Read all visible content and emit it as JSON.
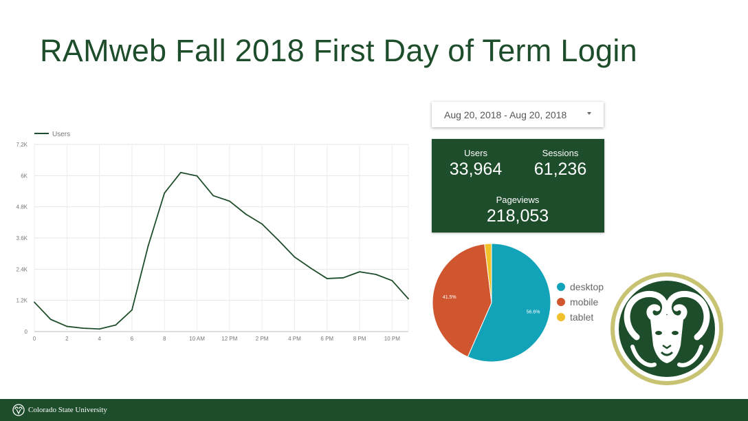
{
  "slide": {
    "title": "RAMweb Fall 2018 First Day of Term Login",
    "footer_text": "Colorado State University"
  },
  "date_range": {
    "label": "Aug 20, 2018 - Aug 20, 2018"
  },
  "kpis": {
    "users": {
      "label": "Users",
      "value": "33,964"
    },
    "sessions": {
      "label": "Sessions",
      "value": "61,236"
    },
    "pageviews": {
      "label": "Pageviews",
      "value": "218,053"
    }
  },
  "colors": {
    "brand_green": "#1e4d2b",
    "line": "#1e4d2b",
    "desktop": "#12a3b9",
    "mobile": "#d0562f",
    "tablet": "#f2c02b",
    "logo_gold": "#c8c372"
  },
  "icons": {
    "dropdown": "caret-down-icon",
    "logo": "csu-ram-logo",
    "footer": "csu-ram-mark"
  },
  "chart_data": [
    {
      "type": "line",
      "legend": {
        "entries": [
          "Users"
        ],
        "position": "top-left"
      },
      "x_tick_labels": [
        "0",
        "2",
        "4",
        "6",
        "8",
        "10 AM",
        "12 PM",
        "2 PM",
        "4 PM",
        "6 PM",
        "8 PM",
        "10 PM"
      ],
      "y_tick_labels": [
        "0",
        "1.2K",
        "2.4K",
        "3.6K",
        "4.8K",
        "6K",
        "7.2K"
      ],
      "ylim": [
        0,
        7200
      ],
      "xlim": [
        0,
        23
      ],
      "grid": true,
      "series": [
        {
          "name": "Users",
          "x": [
            0,
            1,
            2,
            3,
            4,
            5,
            6,
            7,
            8,
            9,
            10,
            11,
            12,
            13,
            14,
            15,
            16,
            17,
            18,
            19,
            20,
            21,
            22,
            23
          ],
          "values": [
            1130,
            470,
            200,
            130,
            100,
            250,
            830,
            3300,
            5330,
            6120,
            5990,
            5230,
            5020,
            4520,
            4140,
            3520,
            2870,
            2440,
            2040,
            2070,
            2300,
            2200,
            1960,
            1260
          ]
        }
      ]
    },
    {
      "type": "pie",
      "labels": [
        "desktop",
        "mobile",
        "tablet"
      ],
      "values": [
        56.6,
        41.5,
        1.9
      ],
      "data_labels": [
        "56.6%",
        "41.5%",
        ""
      ],
      "legend": {
        "position": "right"
      }
    }
  ]
}
